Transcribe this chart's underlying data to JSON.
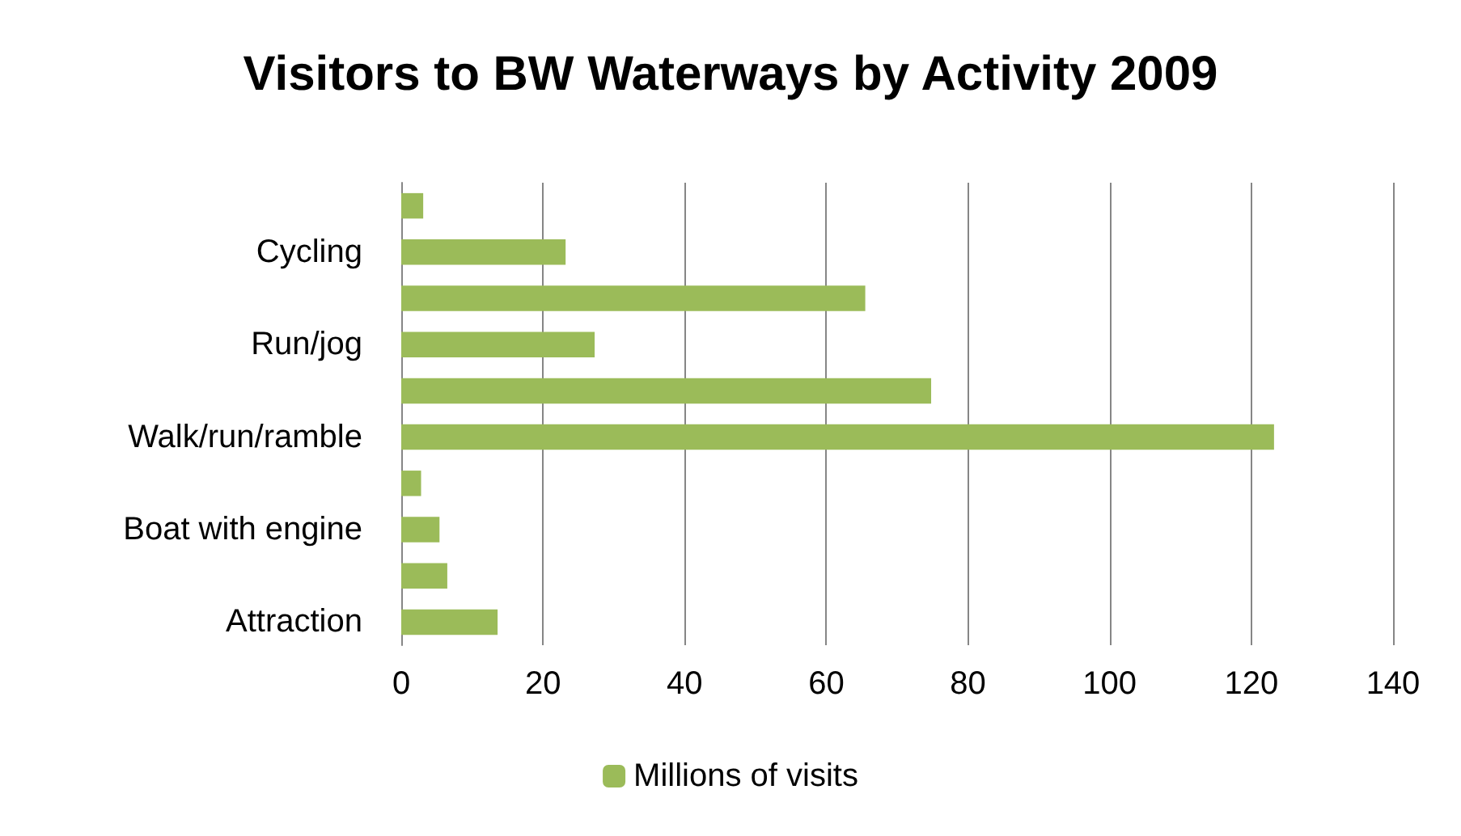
{
  "chart_data": {
    "type": "bar",
    "orientation": "horizontal",
    "title": "Visitors to BW Waterways by Activity 2009",
    "categories": [
      null,
      "Cycling",
      null,
      "Run/jog",
      null,
      "Walk/run/ramble",
      null,
      "Boat with engine",
      null,
      "Attraction"
    ],
    "series": [
      {
        "name": "Millions of visits",
        "color": "#9bbb59",
        "values": [
          3.1,
          23.2,
          65.5,
          27.3,
          74.8,
          123.2,
          2.8,
          5.4,
          6.5,
          13.6
        ]
      }
    ],
    "xlim": [
      0,
      140
    ],
    "xticks": [
      0,
      20,
      40,
      60,
      80,
      100,
      120,
      140
    ],
    "grid": "x",
    "legend": "bottom"
  }
}
